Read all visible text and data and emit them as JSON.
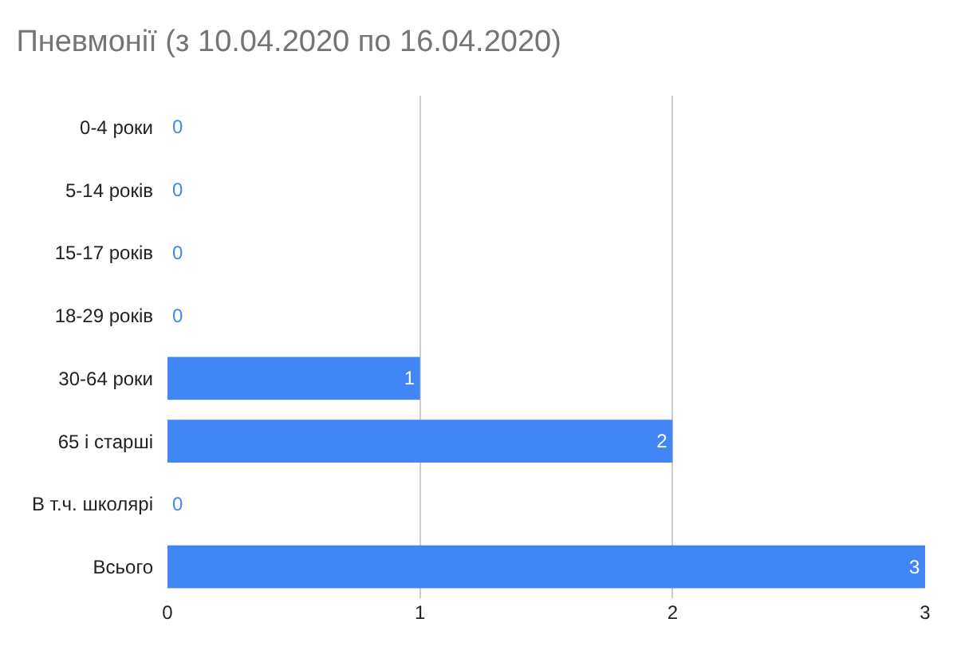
{
  "chart_data": {
    "type": "bar",
    "orientation": "horizontal",
    "title": "Пневмонії (з 10.04.2020 по 16.04.2020)",
    "categories": [
      "0-4 роки",
      "5-14 років",
      "15-17 років",
      "18-29 років",
      "30-64 роки",
      "65 і старші",
      "В т.ч. школярі",
      "Всього"
    ],
    "values": [
      0,
      0,
      0,
      0,
      1,
      2,
      0,
      3
    ],
    "color": "#4285f4",
    "xlim": [
      0,
      3
    ],
    "xticks": [
      0,
      1,
      2,
      3
    ],
    "grid": "x",
    "data_labels": true,
    "legend": false
  }
}
